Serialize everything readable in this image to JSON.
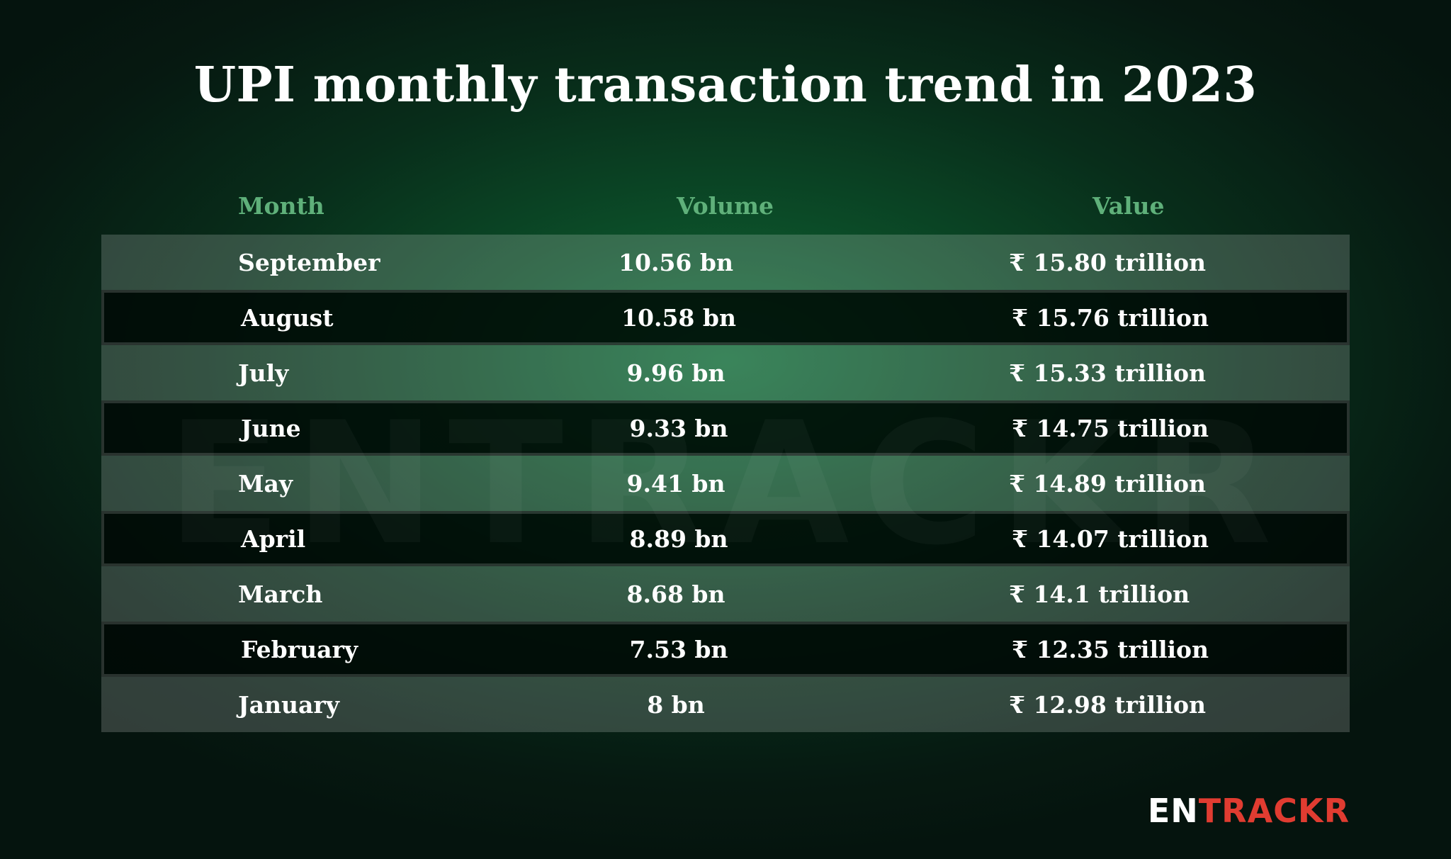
{
  "title": "UPI monthly transaction trend in 2023",
  "watermark": "ENTRACKR",
  "logo": {
    "part1": "EN",
    "part2": "TRACKR"
  },
  "colors": {
    "header": "#5fb07a",
    "logo_accent": "#e03c31",
    "background": "#082d1a"
  },
  "chart_data": {
    "type": "table",
    "title": "UPI monthly transaction trend in 2023",
    "columns": [
      "Month",
      "Volume",
      "Value"
    ],
    "rows": [
      {
        "month": "September",
        "volume": "10.56 bn",
        "value": "₹ 15.80 trillion"
      },
      {
        "month": "August",
        "volume": "10.58 bn",
        "value": "₹ 15.76 trillion"
      },
      {
        "month": "July",
        "volume": "9.96 bn",
        "value": "₹ 15.33 trillion"
      },
      {
        "month": "June",
        "volume": "9.33 bn",
        "value": "₹ 14.75 trillion"
      },
      {
        "month": "May",
        "volume": "9.41 bn",
        "value": "₹ 14.89 trillion"
      },
      {
        "month": "April",
        "volume": "8.89 bn",
        "value": "₹ 14.07 trillion"
      },
      {
        "month": "March",
        "volume": "8.68 bn",
        "value": "₹ 14.1 trillion"
      },
      {
        "month": "February",
        "volume": "7.53 bn",
        "value": "₹ 12.35 trillion"
      },
      {
        "month": "January",
        "volume": "8 bn",
        "value": "₹ 12.98 trillion"
      }
    ]
  }
}
